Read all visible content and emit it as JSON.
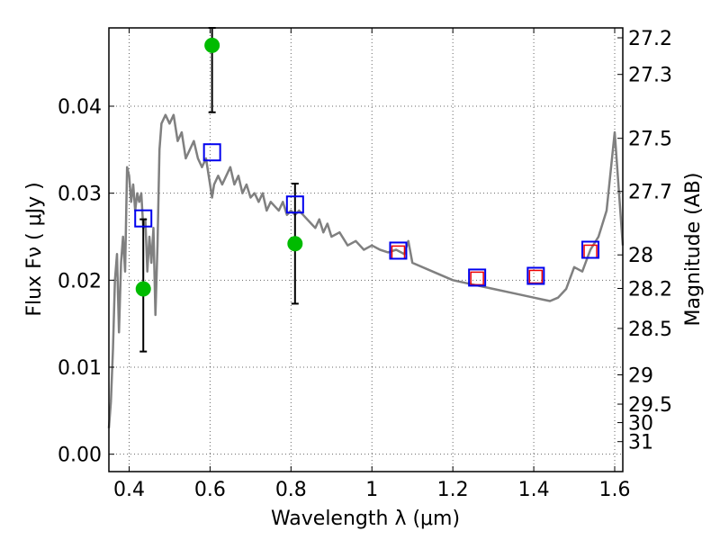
{
  "chart_data": {
    "type": "scatter",
    "xlabel": "Wavelength  λ (μm)",
    "ylabel": "Flux  Fν  ( μJy )",
    "y2label": "Magnitude (AB)",
    "xlim": [
      0.35,
      1.62
    ],
    "ylim": [
      -0.002,
      0.049
    ],
    "x_ticks": [
      0.4,
      0.6,
      0.8,
      1.0,
      1.2,
      1.4,
      1.6
    ],
    "x_tick_labels": [
      "0.4",
      "0.6",
      "0.8",
      "1",
      "1.2",
      "1.4",
      "1.6"
    ],
    "y_ticks": [
      0.0,
      0.01,
      0.02,
      0.03,
      0.04
    ],
    "y_tick_labels": [
      "0.00",
      "0.01",
      "0.02",
      "0.03",
      "0.04"
    ],
    "mag_ticks": [
      27.2,
      27.3,
      27.5,
      27.7,
      28,
      28.2,
      28.5,
      29,
      29.5,
      30,
      31
    ],
    "mag_tick_labels": [
      "27.2",
      "27.3",
      "27.5",
      "27.7",
      "28",
      "28.2",
      "28.5",
      "29",
      "29.5",
      "30",
      "31"
    ],
    "grid": true,
    "series": [
      {
        "kind": "template_sed_line",
        "color": "#808080",
        "x": [
          0.35,
          0.355,
          0.36,
          0.365,
          0.37,
          0.375,
          0.38,
          0.385,
          0.39,
          0.395,
          0.4,
          0.405,
          0.41,
          0.415,
          0.42,
          0.425,
          0.43,
          0.435,
          0.44,
          0.445,
          0.45,
          0.455,
          0.46,
          0.465,
          0.47,
          0.475,
          0.48,
          0.49,
          0.5,
          0.51,
          0.52,
          0.53,
          0.54,
          0.55,
          0.56,
          0.57,
          0.58,
          0.59,
          0.6,
          0.605,
          0.61,
          0.62,
          0.63,
          0.64,
          0.65,
          0.66,
          0.67,
          0.68,
          0.69,
          0.7,
          0.71,
          0.72,
          0.73,
          0.74,
          0.75,
          0.76,
          0.77,
          0.78,
          0.79,
          0.8,
          0.81,
          0.82,
          0.83,
          0.84,
          0.85,
          0.86,
          0.87,
          0.88,
          0.89,
          0.9,
          0.92,
          0.94,
          0.96,
          0.98,
          1.0,
          1.02,
          1.04,
          1.06,
          1.08,
          1.09,
          1.1,
          1.15,
          1.2,
          1.25,
          1.3,
          1.35,
          1.4,
          1.42,
          1.44,
          1.46,
          1.48,
          1.5,
          1.52,
          1.54,
          1.56,
          1.58,
          1.6,
          1.62
        ],
        "y": [
          0.003,
          0.006,
          0.012,
          0.02,
          0.023,
          0.014,
          0.022,
          0.025,
          0.021,
          0.033,
          0.032,
          0.029,
          0.031,
          0.028,
          0.03,
          0.029,
          0.03,
          0.026,
          0.027,
          0.021,
          0.025,
          0.022,
          0.026,
          0.016,
          0.024,
          0.035,
          0.038,
          0.039,
          0.038,
          0.039,
          0.036,
          0.037,
          0.034,
          0.035,
          0.036,
          0.034,
          0.033,
          0.034,
          0.031,
          0.0295,
          0.031,
          0.032,
          0.031,
          0.032,
          0.033,
          0.031,
          0.032,
          0.03,
          0.031,
          0.0295,
          0.03,
          0.029,
          0.03,
          0.028,
          0.029,
          0.0285,
          0.028,
          0.029,
          0.0275,
          0.028,
          0.0275,
          0.028,
          0.0275,
          0.027,
          0.0265,
          0.026,
          0.027,
          0.0255,
          0.0265,
          0.025,
          0.0255,
          0.024,
          0.0245,
          0.0235,
          0.024,
          0.0235,
          0.0232,
          0.0235,
          0.023,
          0.0245,
          0.022,
          0.021,
          0.02,
          0.0195,
          0.019,
          0.0185,
          0.018,
          0.0178,
          0.0176,
          0.018,
          0.019,
          0.0215,
          0.021,
          0.0235,
          0.025,
          0.028,
          0.037,
          0.024
        ]
      },
      {
        "kind": "observed_flux",
        "marker": "circle",
        "color": "#00bb00",
        "x": [
          0.435,
          0.605,
          0.81
        ],
        "y": [
          0.019,
          0.047,
          0.0242
        ],
        "yerr_low": [
          0.0118,
          0.0393,
          0.0173
        ],
        "yerr_high": [
          0.027,
          0.049,
          0.0311
        ]
      },
      {
        "kind": "model_flux",
        "marker": "square",
        "color": "#0000ee",
        "x": [
          0.435,
          0.605,
          0.81,
          1.065,
          1.26,
          1.405,
          1.54
        ],
        "y": [
          0.0271,
          0.0347,
          0.0287,
          0.0234,
          0.0203,
          0.0205,
          0.0235
        ]
      },
      {
        "kind": "template_flux",
        "marker": "square",
        "color": "#ee0000",
        "x": [
          1.065,
          1.26,
          1.405,
          1.54
        ],
        "y": [
          0.0232,
          0.0202,
          0.0204,
          0.0233
        ]
      }
    ]
  }
}
